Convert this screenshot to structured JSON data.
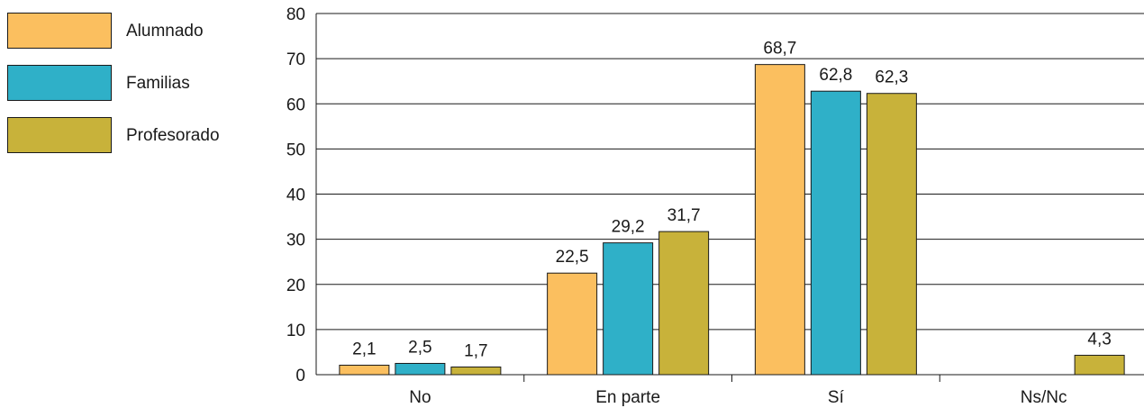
{
  "chart_data": {
    "type": "bar",
    "categories": [
      "No",
      "En parte",
      "Sí",
      "Ns/Nc"
    ],
    "series": [
      {
        "name": "Alumnado",
        "color": "#fbbf5f",
        "values": [
          2.1,
          22.5,
          68.7,
          null
        ],
        "labels": [
          "2,1",
          "22,5",
          "68,7",
          ""
        ]
      },
      {
        "name": "Familias",
        "color": "#2fb0c8",
        "values": [
          2.5,
          29.2,
          62.8,
          null
        ],
        "labels": [
          "2,5",
          "29,2",
          "62,8",
          ""
        ]
      },
      {
        "name": "Profesorado",
        "color": "#c8b23a",
        "values": [
          1.7,
          31.7,
          62.3,
          4.3
        ],
        "labels": [
          "1,7",
          "31,7",
          "62,3",
          "4,3"
        ]
      }
    ],
    "ylim": [
      0,
      80
    ],
    "yticks": [
      0,
      10,
      20,
      30,
      40,
      50,
      60,
      70,
      80
    ],
    "grid": true,
    "legend": "top-left"
  }
}
